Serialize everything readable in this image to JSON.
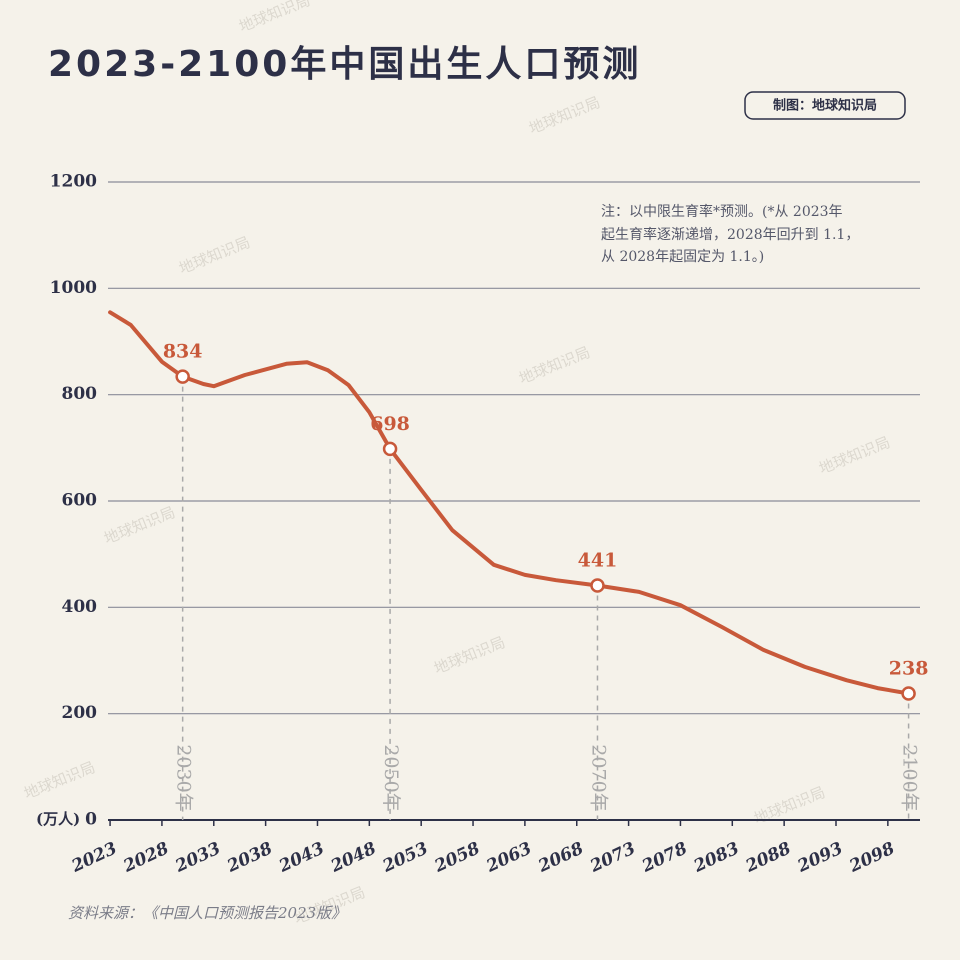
{
  "title": "2023-2100年中国出生人口预测",
  "credit": "制图：地球知识局",
  "note": [
    "注：以中限生育率*预测。(*从 2023年",
    "起生育率逐渐递增，2028年回升到 1.1，",
    "从 2028年起固定为 1.1。)"
  ],
  "source": "资料来源：《中国人口预测报告2023版》",
  "watermark": "地球知识局",
  "chart_data": {
    "type": "line",
    "color": "#c8593a",
    "grid": true,
    "y_unit": "(万人)",
    "x": [
      2023,
      2025,
      2028,
      2030,
      2032,
      2033,
      2036,
      2040,
      2042,
      2044,
      2046,
      2048,
      2050,
      2053,
      2056,
      2060,
      2063,
      2066,
      2070,
      2074,
      2078,
      2082,
      2086,
      2090,
      2094,
      2097,
      2100
    ],
    "values": [
      955,
      931,
      862,
      834,
      820,
      816,
      837,
      858,
      861,
      846,
      818,
      767,
      698,
      621,
      545,
      480,
      461,
      451,
      441,
      429,
      404,
      363,
      320,
      288,
      263,
      248,
      238
    ],
    "markers": [
      {
        "x": 2030,
        "y": 834,
        "label": "2030年"
      },
      {
        "x": 2050,
        "y": 698,
        "label": "2050年"
      },
      {
        "x": 2070,
        "y": 441,
        "label": "2070年"
      },
      {
        "x": 2100,
        "y": 238,
        "label": "2100年"
      }
    ],
    "xlim": [
      2022.8,
      2101.1
    ],
    "xticks": [
      2023,
      2028,
      2033,
      2038,
      2043,
      2048,
      2053,
      2058,
      2063,
      2068,
      2073,
      2078,
      2083,
      2088,
      2093,
      2098
    ],
    "ylim": [
      0,
      1200
    ],
    "yticks": [
      0,
      200,
      400,
      600,
      800,
      1000,
      1200
    ]
  }
}
